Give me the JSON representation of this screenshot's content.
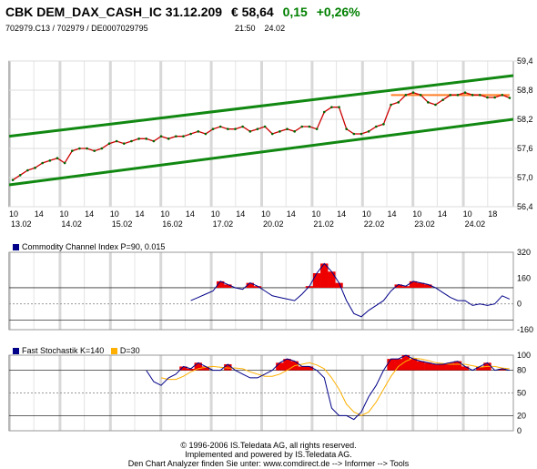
{
  "header": {
    "name": "CBK DEM_DAX_CASH_IC 31.12.209",
    "price": "€ 58,64",
    "change": "0,15",
    "change_pct": "+0,26%",
    "ids": "702979.C13  /  702979  /  DE0007029795",
    "time": "21:50",
    "date": "24.02"
  },
  "colors": {
    "price_line": "#cc0000",
    "channel": "#118811",
    "resistance": "#ff7f27",
    "indicator_line": "#000088",
    "indicator_fill": "#ee0000",
    "d_line": "#ffb000",
    "grid_dark": "#cccccc"
  },
  "chart_data": [
    {
      "type": "line",
      "panel": "price",
      "ylim": [
        56.4,
        59.4
      ],
      "y_ticks": [
        "59,4",
        "58,8",
        "58,2",
        "57,6",
        "57,0",
        "56,4"
      ],
      "x_ticks": [
        {
          "hour": "10",
          "day": "13.02"
        },
        {
          "hour": "14",
          "day": ""
        },
        {
          "hour": "10",
          "day": "14.02"
        },
        {
          "hour": "14",
          "day": ""
        },
        {
          "hour": "10",
          "day": "15.02"
        },
        {
          "hour": "14",
          "day": ""
        },
        {
          "hour": "10",
          "day": "16.02"
        },
        {
          "hour": "14",
          "day": ""
        },
        {
          "hour": "10",
          "day": "17.02"
        },
        {
          "hour": "14",
          "day": ""
        },
        {
          "hour": "10",
          "day": "20.02"
        },
        {
          "hour": "14",
          "day": ""
        },
        {
          "hour": "10",
          "day": "21.02"
        },
        {
          "hour": "14",
          "day": ""
        },
        {
          "hour": "10",
          "day": "22.02"
        },
        {
          "hour": "14",
          "day": ""
        },
        {
          "hour": "10",
          "day": "23.02"
        },
        {
          "hour": "14",
          "day": ""
        },
        {
          "hour": "10",
          "day": "24.02"
        },
        {
          "hour": "18",
          "day": ""
        }
      ],
      "values": [
        56.95,
        57.05,
        57.15,
        57.2,
        57.3,
        57.35,
        57.4,
        57.3,
        57.55,
        57.6,
        57.6,
        57.55,
        57.6,
        57.7,
        57.75,
        57.7,
        57.75,
        57.8,
        57.8,
        57.75,
        57.85,
        57.8,
        57.85,
        57.85,
        57.9,
        57.95,
        57.9,
        58.0,
        58.05,
        58.0,
        58.0,
        58.05,
        57.95,
        58.0,
        58.05,
        57.9,
        57.95,
        58.0,
        57.95,
        58.05,
        58.05,
        58.0,
        58.35,
        58.45,
        58.45,
        58.0,
        57.9,
        57.9,
        57.95,
        58.05,
        58.1,
        58.5,
        58.55,
        58.7,
        58.75,
        58.7,
        58.55,
        58.5,
        58.6,
        58.7,
        58.7,
        58.75,
        58.7,
        58.7,
        58.65,
        58.65,
        58.7,
        58.64
      ],
      "channel_upper": [
        [
          0,
          57.85
        ],
        [
          67,
          59.1
        ]
      ],
      "channel_lower": [
        [
          0,
          56.85
        ],
        [
          67,
          58.2
        ]
      ],
      "resistance": [
        [
          51,
          58.7
        ],
        [
          67,
          58.7
        ]
      ]
    },
    {
      "type": "area",
      "panel": "cci",
      "ylim": [
        -160,
        320
      ],
      "y_ticks": [
        "320",
        "160",
        "0",
        "-160"
      ],
      "reference_lines": [
        100,
        -100
      ],
      "values": [
        null,
        null,
        null,
        null,
        null,
        null,
        null,
        null,
        null,
        null,
        null,
        null,
        null,
        null,
        null,
        null,
        null,
        null,
        null,
        null,
        null,
        null,
        null,
        null,
        20,
        40,
        60,
        80,
        140,
        120,
        100,
        90,
        130,
        110,
        80,
        50,
        40,
        30,
        20,
        60,
        110,
        190,
        250,
        200,
        130,
        20,
        -60,
        -80,
        -40,
        -10,
        20,
        80,
        120,
        110,
        140,
        130,
        120,
        100,
        70,
        40,
        20,
        20,
        -10,
        0,
        -10,
        0,
        50,
        30
      ]
    },
    {
      "type": "line",
      "panel": "stochastic",
      "ylim": [
        0,
        100
      ],
      "y_ticks": [
        "100",
        "80",
        "50",
        "20",
        "0"
      ],
      "k_values": [
        null,
        null,
        null,
        null,
        null,
        null,
        null,
        null,
        null,
        null,
        null,
        null,
        null,
        null,
        null,
        null,
        null,
        null,
        80,
        65,
        60,
        70,
        75,
        85,
        82,
        90,
        85,
        80,
        80,
        88,
        80,
        75,
        70,
        70,
        75,
        80,
        90,
        95,
        92,
        85,
        85,
        80,
        70,
        30,
        20,
        20,
        15,
        25,
        45,
        60,
        80,
        95,
        95,
        100,
        95,
        92,
        90,
        88,
        88,
        90,
        92,
        85,
        80,
        85,
        90,
        80,
        82,
        80
      ],
      "d_values": [
        null,
        null,
        null,
        null,
        null,
        null,
        null,
        null,
        null,
        null,
        null,
        null,
        null,
        null,
        null,
        null,
        null,
        null,
        null,
        null,
        70,
        68,
        68,
        72,
        78,
        82,
        84,
        85,
        84,
        83,
        83,
        82,
        78,
        75,
        72,
        72,
        75,
        80,
        86,
        88,
        90,
        87,
        82,
        70,
        55,
        35,
        25,
        20,
        25,
        38,
        55,
        72,
        85,
        92,
        96,
        95,
        93,
        90,
        89,
        88,
        88,
        88,
        86,
        84,
        85,
        85,
        83,
        82
      ]
    }
  ],
  "cci_title": "Commodity Channel Index P=90, 0.015",
  "stoch_title_k": "Fast Stochastik K=140",
  "stoch_title_d": "D=30",
  "footer": {
    "line1": "© 1996-2006 IS.Teledata AG, all rights reserved.",
    "line2": "Implemented and powered by IS.Teledata AG.",
    "line3": "Den Chart Analyzer finden Sie unter: www.comdirect.de --> Informer --> Tools"
  }
}
